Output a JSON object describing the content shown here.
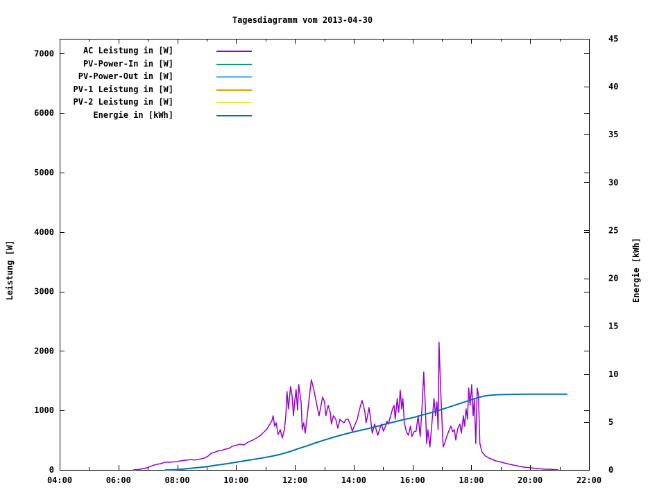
{
  "title": "Tagesdiagramm vom 2013-04-30",
  "axes": {
    "x": {
      "min": 4,
      "max": 22,
      "tick_step": 2,
      "minor_step": 1,
      "tick_labels": [
        "04:00",
        "06:00",
        "08:00",
        "10:00",
        "12:00",
        "14:00",
        "16:00",
        "18:00",
        "20:00",
        "22:00"
      ]
    },
    "y_left": {
      "label": "Leistung [W]",
      "min": 0,
      "max": 7250,
      "ticks": [
        0,
        1000,
        2000,
        3000,
        4000,
        5000,
        6000,
        7000
      ]
    },
    "y_right": {
      "label": "Energie [kWh]",
      "min": 0,
      "max": 45,
      "ticks": [
        0,
        5,
        10,
        15,
        20,
        25,
        30,
        35,
        40,
        45
      ]
    }
  },
  "chart_data": {
    "type": "line",
    "title": "Tagesdiagramm vom 2013-04-30",
    "xlabel": "",
    "ylabel": "Leistung [W]",
    "y2label": "Energie [kWh]",
    "x_unit": "time of day (decimal hours)",
    "xlim": [
      4,
      22
    ],
    "ylim_left": [
      0,
      7250
    ],
    "ylim_right": [
      0,
      45
    ],
    "grid": false,
    "legend_position": "top-left inside",
    "series": [
      {
        "name": "AC Leistung in [W]",
        "color": "#9400d3",
        "axis": "left",
        "points": [
          [
            6.5,
            0
          ],
          [
            6.62,
            5
          ],
          [
            6.74,
            10
          ],
          [
            6.85,
            25
          ],
          [
            6.97,
            35
          ],
          [
            7.09,
            60
          ],
          [
            7.21,
            82
          ],
          [
            7.33,
            95
          ],
          [
            7.44,
            105
          ],
          [
            7.52,
            118
          ],
          [
            7.56,
            128
          ],
          [
            7.63,
            130
          ],
          [
            7.7,
            128
          ],
          [
            7.8,
            130
          ],
          [
            7.89,
            135
          ],
          [
            7.99,
            140
          ],
          [
            8.1,
            150
          ],
          [
            8.22,
            160
          ],
          [
            8.34,
            165
          ],
          [
            8.46,
            175
          ],
          [
            8.58,
            165
          ],
          [
            8.69,
            175
          ],
          [
            8.81,
            185
          ],
          [
            8.93,
            200
          ],
          [
            9.04,
            230
          ],
          [
            9.16,
            280
          ],
          [
            9.28,
            300
          ],
          [
            9.4,
            320
          ],
          [
            9.52,
            330
          ],
          [
            9.64,
            350
          ],
          [
            9.75,
            360
          ],
          [
            9.87,
            397
          ],
          [
            9.99,
            410
          ],
          [
            10.11,
            432
          ],
          [
            10.27,
            420
          ],
          [
            10.41,
            467
          ],
          [
            10.56,
            500
          ],
          [
            10.7,
            537
          ],
          [
            10.81,
            572
          ],
          [
            10.93,
            630
          ],
          [
            11.05,
            688
          ],
          [
            11.15,
            770
          ],
          [
            11.22,
            828
          ],
          [
            11.26,
            910
          ],
          [
            11.31,
            735
          ],
          [
            11.36,
            793
          ],
          [
            11.43,
            595
          ],
          [
            11.5,
            677
          ],
          [
            11.57,
            537
          ],
          [
            11.64,
            677
          ],
          [
            11.69,
            910
          ],
          [
            11.73,
            1318
          ],
          [
            11.78,
            1027
          ],
          [
            11.85,
            1400
          ],
          [
            11.9,
            1260
          ],
          [
            11.95,
            910
          ],
          [
            11.99,
            1143
          ],
          [
            12.04,
            1353
          ],
          [
            12.09,
            1003
          ],
          [
            12.13,
            1435
          ],
          [
            12.21,
            1143
          ],
          [
            12.25,
            677
          ],
          [
            12.3,
            793
          ],
          [
            12.35,
            618
          ],
          [
            12.42,
            910
          ],
          [
            12.49,
            1225
          ],
          [
            12.56,
            1516
          ],
          [
            12.63,
            1376
          ],
          [
            12.7,
            1202
          ],
          [
            12.77,
            1027
          ],
          [
            12.82,
            910
          ],
          [
            12.89,
            1085
          ],
          [
            12.94,
            1225
          ],
          [
            13.01,
            1143
          ],
          [
            13.05,
            910
          ],
          [
            13.13,
            1085
          ],
          [
            13.2,
            968
          ],
          [
            13.24,
            770
          ],
          [
            13.31,
            910
          ],
          [
            13.39,
            852
          ],
          [
            13.46,
            700
          ],
          [
            13.53,
            852
          ],
          [
            13.6,
            817
          ],
          [
            13.67,
            793
          ],
          [
            13.74,
            852
          ],
          [
            13.81,
            852
          ],
          [
            13.88,
            770
          ],
          [
            13.95,
            653
          ],
          [
            14.05,
            770
          ],
          [
            14.12,
            852
          ],
          [
            14.19,
            1003
          ],
          [
            14.28,
            1167
          ],
          [
            14.33,
            1085
          ],
          [
            14.38,
            968
          ],
          [
            14.42,
            793
          ],
          [
            14.47,
            910
          ],
          [
            14.52,
            1050
          ],
          [
            14.56,
            910
          ],
          [
            14.63,
            618
          ],
          [
            14.71,
            770
          ],
          [
            14.75,
            700
          ],
          [
            14.82,
            583
          ],
          [
            14.89,
            700
          ],
          [
            14.94,
            770
          ],
          [
            15.01,
            653
          ],
          [
            15.08,
            735
          ],
          [
            15.13,
            817
          ],
          [
            15.18,
            770
          ],
          [
            15.22,
            852
          ],
          [
            15.27,
            933
          ],
          [
            15.32,
            1027
          ],
          [
            15.37,
            1085
          ],
          [
            15.41,
            852
          ],
          [
            15.48,
            1202
          ],
          [
            15.53,
            968
          ],
          [
            15.58,
            1341
          ],
          [
            15.63,
            1027
          ],
          [
            15.67,
            1202
          ],
          [
            15.72,
            793
          ],
          [
            15.79,
            642
          ],
          [
            15.86,
            583
          ],
          [
            15.93,
            735
          ],
          [
            15.98,
            560
          ],
          [
            16.05,
            642
          ],
          [
            16.12,
            653
          ],
          [
            16.19,
            910
          ],
          [
            16.26,
            560
          ],
          [
            16.33,
            1120
          ],
          [
            16.38,
            1645
          ],
          [
            16.43,
            1120
          ],
          [
            16.48,
            443
          ],
          [
            16.52,
            677
          ],
          [
            16.59,
            385
          ],
          [
            16.66,
            793
          ],
          [
            16.73,
            1202
          ],
          [
            16.78,
            910
          ],
          [
            16.83,
            1143
          ],
          [
            16.87,
            677
          ],
          [
            16.9,
            2147
          ],
          [
            16.95,
            1435
          ],
          [
            16.99,
            968
          ],
          [
            17.04,
            385
          ],
          [
            17.09,
            443
          ],
          [
            17.14,
            525
          ],
          [
            17.18,
            583
          ],
          [
            17.25,
            677
          ],
          [
            17.3,
            735
          ],
          [
            17.37,
            642
          ],
          [
            17.42,
            677
          ],
          [
            17.47,
            502
          ],
          [
            17.54,
            700
          ],
          [
            17.61,
            770
          ],
          [
            17.66,
            618
          ],
          [
            17.73,
            910
          ],
          [
            17.77,
            735
          ],
          [
            17.82,
            1027
          ],
          [
            17.87,
            852
          ],
          [
            17.91,
            1376
          ],
          [
            17.96,
            1085
          ],
          [
            18.01,
            1435
          ],
          [
            18.06,
            910
          ],
          [
            18.1,
            1202
          ],
          [
            18.15,
            443
          ],
          [
            18.2,
            1376
          ],
          [
            18.24,
            1260
          ],
          [
            18.29,
            443
          ],
          [
            18.36,
            303
          ],
          [
            18.48,
            233
          ],
          [
            18.6,
            198
          ],
          [
            18.72,
            175
          ],
          [
            18.83,
            152
          ],
          [
            18.95,
            140
          ],
          [
            19.12,
            117
          ],
          [
            19.31,
            93
          ],
          [
            19.54,
            70
          ],
          [
            19.78,
            47
          ],
          [
            20.01,
            35
          ],
          [
            20.25,
            23
          ],
          [
            20.49,
            12
          ],
          [
            20.72,
            10
          ],
          [
            20.96,
            0
          ]
        ]
      },
      {
        "name": "PV-Power-In in [W]",
        "color": "#009e73",
        "axis": "left",
        "points": []
      },
      {
        "name": "PV-Power-Out in [W]",
        "color": "#56b4e9",
        "axis": "left",
        "points": []
      },
      {
        "name": "PV-1 Leistung in [W]",
        "color": "#e69f00",
        "axis": "left",
        "points": []
      },
      {
        "name": "PV-2 Leistung in [W]",
        "color": "#f0e442",
        "axis": "left",
        "points": []
      },
      {
        "name": "Energie in [kWh]",
        "color": "#0072b2",
        "axis": "right",
        "points": [
          [
            7.6,
            0
          ],
          [
            7.9,
            0.02
          ],
          [
            8.2,
            0.08
          ],
          [
            8.5,
            0.18
          ],
          [
            8.9,
            0.3
          ],
          [
            9.3,
            0.48
          ],
          [
            9.7,
            0.65
          ],
          [
            10.1,
            0.85
          ],
          [
            10.5,
            1.05
          ],
          [
            10.9,
            1.25
          ],
          [
            11.2,
            1.42
          ],
          [
            11.5,
            1.62
          ],
          [
            11.8,
            1.88
          ],
          [
            12.1,
            2.2
          ],
          [
            12.4,
            2.5
          ],
          [
            12.7,
            2.82
          ],
          [
            13.0,
            3.12
          ],
          [
            13.3,
            3.4
          ],
          [
            13.6,
            3.65
          ],
          [
            13.9,
            3.9
          ],
          [
            14.2,
            4.12
          ],
          [
            14.5,
            4.32
          ],
          [
            14.8,
            4.55
          ],
          [
            15.1,
            4.8
          ],
          [
            15.4,
            5.02
          ],
          [
            15.7,
            5.25
          ],
          [
            16.0,
            5.45
          ],
          [
            16.3,
            5.7
          ],
          [
            16.6,
            5.95
          ],
          [
            16.9,
            6.22
          ],
          [
            17.2,
            6.52
          ],
          [
            17.5,
            6.82
          ],
          [
            17.8,
            7.12
          ],
          [
            18.0,
            7.32
          ],
          [
            18.2,
            7.52
          ],
          [
            18.4,
            7.68
          ],
          [
            18.6,
            7.78
          ],
          [
            18.9,
            7.85
          ],
          [
            19.3,
            7.88
          ],
          [
            19.8,
            7.9
          ],
          [
            20.5,
            7.9
          ],
          [
            21.25,
            7.9
          ]
        ]
      }
    ]
  }
}
